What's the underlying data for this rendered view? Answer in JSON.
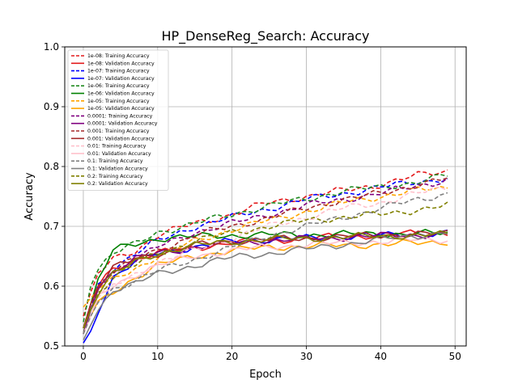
{
  "chart_data": {
    "type": "line",
    "title": "HP_DenseReg_Search: Accuracy",
    "xlabel": "Epoch",
    "ylabel": "Accuracy",
    "xlim": [
      -2.5,
      51.5
    ],
    "ylim": [
      0.5,
      1.0
    ],
    "xticks": [
      0,
      10,
      20,
      30,
      40,
      50
    ],
    "yticks": [
      0.5,
      0.6,
      0.7,
      0.8,
      0.9,
      1.0
    ],
    "grid": true,
    "legend_position": "upper left",
    "x_anchors": [
      0,
      1,
      2,
      4,
      7,
      10,
      15,
      20,
      25,
      30,
      35,
      40,
      45,
      49
    ],
    "series": [
      {
        "name": "1e-08: Training Accuracy",
        "color": "#e31a1c",
        "dash": true,
        "anchors": [
          0.55,
          0.59,
          0.62,
          0.645,
          0.66,
          0.685,
          0.705,
          0.72,
          0.74,
          0.75,
          0.76,
          0.77,
          0.785,
          0.793
        ]
      },
      {
        "name": "1e-08: Validation Accuracy",
        "color": "#e31a1c",
        "dash": false,
        "anchors": [
          0.52,
          0.57,
          0.6,
          0.63,
          0.645,
          0.655,
          0.665,
          0.672,
          0.677,
          0.68,
          0.683,
          0.686,
          0.688,
          0.69
        ]
      },
      {
        "name": "1e-07: Training Accuracy",
        "color": "#0000ff",
        "dash": true,
        "anchors": [
          0.52,
          0.56,
          0.6,
          0.63,
          0.655,
          0.675,
          0.7,
          0.715,
          0.73,
          0.745,
          0.755,
          0.765,
          0.775,
          0.78
        ]
      },
      {
        "name": "1e-07: Validation Accuracy",
        "color": "#0000ff",
        "dash": false,
        "anchors": [
          0.505,
          0.525,
          0.56,
          0.615,
          0.64,
          0.655,
          0.665,
          0.675,
          0.678,
          0.68,
          0.683,
          0.685,
          0.687,
          0.688
        ]
      },
      {
        "name": "1e-06: Training Accuracy",
        "color": "#228b22",
        "dash": true,
        "anchors": [
          0.54,
          0.6,
          0.63,
          0.655,
          0.67,
          0.69,
          0.705,
          0.72,
          0.735,
          0.745,
          0.76,
          0.765,
          0.775,
          0.785
        ]
      },
      {
        "name": "1e-06: Validation Accuracy",
        "color": "#008000",
        "dash": false,
        "anchors": [
          0.52,
          0.57,
          0.61,
          0.66,
          0.67,
          0.68,
          0.683,
          0.685,
          0.686,
          0.686,
          0.687,
          0.687,
          0.688,
          0.688
        ]
      },
      {
        "name": "1e-05: Training Accuracy",
        "color": "#ffa500",
        "dash": true,
        "anchors": [
          0.565,
          0.58,
          0.595,
          0.61,
          0.63,
          0.65,
          0.675,
          0.695,
          0.71,
          0.725,
          0.74,
          0.75,
          0.76,
          0.765
        ]
      },
      {
        "name": "1e-05: Validation Accuracy",
        "color": "#ffa500",
        "dash": false,
        "anchors": [
          0.53,
          0.55,
          0.57,
          0.59,
          0.615,
          0.635,
          0.65,
          0.66,
          0.665,
          0.667,
          0.668,
          0.67,
          0.672,
          0.675
        ]
      },
      {
        "name": "0.0001: Training Accuracy",
        "color": "#800080",
        "dash": true,
        "anchors": [
          0.53,
          0.57,
          0.6,
          0.625,
          0.645,
          0.665,
          0.69,
          0.705,
          0.72,
          0.735,
          0.745,
          0.755,
          0.768,
          0.778
        ]
      },
      {
        "name": "0.0001: Validation Accuracy",
        "color": "#800080",
        "dash": false,
        "anchors": [
          0.52,
          0.56,
          0.6,
          0.625,
          0.645,
          0.655,
          0.665,
          0.672,
          0.676,
          0.679,
          0.682,
          0.684,
          0.686,
          0.687
        ]
      },
      {
        "name": "0.001: Training Accuracy",
        "color": "#a52a2a",
        "dash": true,
        "anchors": [
          0.53,
          0.57,
          0.6,
          0.625,
          0.645,
          0.66,
          0.685,
          0.7,
          0.715,
          0.73,
          0.745,
          0.755,
          0.77,
          0.78
        ]
      },
      {
        "name": "0.001: Validation Accuracy",
        "color": "#a52a2a",
        "dash": false,
        "anchors": [
          0.53,
          0.57,
          0.6,
          0.63,
          0.645,
          0.655,
          0.668,
          0.675,
          0.678,
          0.68,
          0.683,
          0.685,
          0.687,
          0.688
        ]
      },
      {
        "name": "0.01: Training Accuracy",
        "color": "#ffc0cb",
        "dash": true,
        "anchors": [
          0.52,
          0.55,
          0.58,
          0.6,
          0.62,
          0.64,
          0.66,
          0.68,
          0.7,
          0.715,
          0.73,
          0.74,
          0.755,
          0.765
        ]
      },
      {
        "name": "0.01: Validation Accuracy",
        "color": "#ffc0cb",
        "dash": false,
        "anchors": [
          0.52,
          0.55,
          0.58,
          0.6,
          0.62,
          0.635,
          0.65,
          0.66,
          0.665,
          0.67,
          0.672,
          0.675,
          0.677,
          0.678
        ]
      },
      {
        "name": "0.1: Training Accuracy",
        "color": "#808080",
        "dash": true,
        "anchors": [
          0.52,
          0.55,
          0.575,
          0.595,
          0.61,
          0.625,
          0.645,
          0.665,
          0.685,
          0.7,
          0.715,
          0.73,
          0.745,
          0.755
        ]
      },
      {
        "name": "0.1: Validation Accuracy",
        "color": "#808080",
        "dash": false,
        "anchors": [
          0.51,
          0.535,
          0.56,
          0.595,
          0.605,
          0.62,
          0.635,
          0.648,
          0.655,
          0.662,
          0.67,
          0.678,
          0.685,
          0.69
        ]
      },
      {
        "name": "0.2: Training Accuracy",
        "color": "#808000",
        "dash": true,
        "anchors": [
          0.53,
          0.56,
          0.59,
          0.615,
          0.635,
          0.655,
          0.675,
          0.69,
          0.7,
          0.71,
          0.715,
          0.72,
          0.728,
          0.735
        ]
      },
      {
        "name": "0.2: Validation Accuracy",
        "color": "#808000",
        "dash": false,
        "anchors": [
          0.53,
          0.56,
          0.59,
          0.62,
          0.64,
          0.655,
          0.668,
          0.675,
          0.678,
          0.68,
          0.682,
          0.684,
          0.685,
          0.686
        ]
      }
    ]
  }
}
